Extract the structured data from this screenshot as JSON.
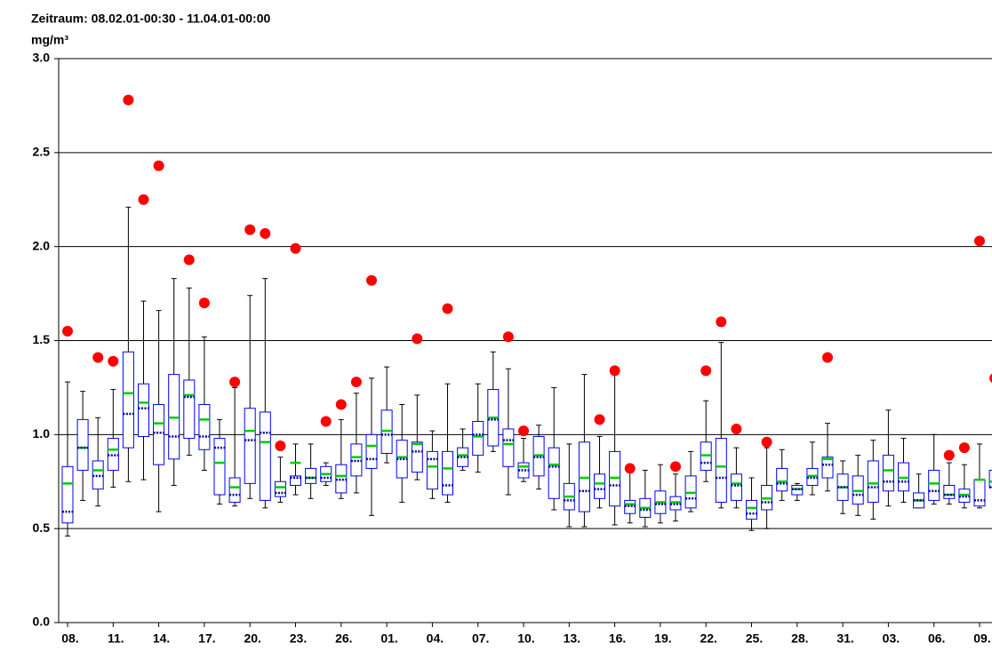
{
  "chart_data": {
    "type": "box",
    "title": "Zeitraum: 08.02.01-00:30 - 11.04.01-00:00",
    "y_label": "mg/m³",
    "categories": [
      "08.",
      null,
      null,
      "11.",
      null,
      null,
      "14.",
      null,
      null,
      "17.",
      null,
      null,
      "20.",
      null,
      null,
      "23.",
      null,
      null,
      "26.",
      null,
      null,
      "01.",
      null,
      null,
      "04.",
      null,
      null,
      "07.",
      null,
      null,
      "10.",
      null,
      null,
      "13.",
      null,
      null,
      "16.",
      null,
      null,
      "19.",
      null,
      null,
      "22.",
      null,
      null,
      "25.",
      null,
      null,
      "28.",
      null,
      null,
      "31.",
      null,
      null,
      "03.",
      null,
      null,
      "06.",
      null,
      null,
      "09.",
      null
    ],
    "whisker_low": [
      0.46,
      0.65,
      0.62,
      0.72,
      0.75,
      0.76,
      0.59,
      0.73,
      0.89,
      0.81,
      0.63,
      0.62,
      0.66,
      0.61,
      0.64,
      0.68,
      0.66,
      0.73,
      0.66,
      0.69,
      0.57,
      0.85,
      0.64,
      0.76,
      0.66,
      0.64,
      0.81,
      0.8,
      0.91,
      0.68,
      0.75,
      0.71,
      0.6,
      0.51,
      0.51,
      0.61,
      0.52,
      0.53,
      0.51,
      0.53,
      0.54,
      0.59,
      0.75,
      0.61,
      0.61,
      0.49,
      0.5,
      0.65,
      0.65,
      0.68,
      0.7,
      0.58,
      0.57,
      0.55,
      0.62,
      0.64,
      0.61,
      0.63,
      0.63,
      0.61,
      0.61,
      0.45
    ],
    "q1": [
      0.53,
      0.81,
      0.71,
      0.81,
      0.93,
      0.99,
      0.84,
      0.87,
      0.98,
      0.92,
      0.68,
      0.64,
      0.74,
      0.65,
      0.67,
      0.73,
      0.74,
      0.75,
      0.69,
      0.78,
      0.82,
      0.9,
      0.77,
      0.8,
      0.71,
      0.68,
      0.83,
      0.89,
      0.94,
      0.83,
      0.77,
      0.78,
      0.66,
      0.6,
      0.59,
      0.66,
      0.62,
      0.58,
      0.56,
      0.58,
      0.6,
      0.61,
      0.81,
      0.64,
      0.65,
      0.55,
      0.6,
      0.7,
      0.68,
      0.73,
      0.77,
      0.65,
      0.63,
      0.64,
      0.7,
      0.7,
      0.61,
      0.65,
      0.66,
      0.64,
      0.62,
      0.72
    ],
    "median": [
      0.74,
      0.93,
      0.81,
      0.92,
      1.22,
      1.17,
      1.06,
      1.09,
      1.21,
      1.08,
      0.85,
      0.72,
      1.02,
      0.96,
      0.72,
      0.85,
      0.77,
      0.79,
      0.78,
      0.88,
      0.94,
      1.02,
      0.88,
      0.95,
      0.83,
      0.82,
      0.89,
      0.99,
      1.09,
      0.95,
      0.83,
      0.89,
      0.84,
      0.67,
      0.77,
      0.74,
      0.77,
      0.63,
      0.61,
      0.64,
      0.64,
      0.69,
      0.89,
      0.83,
      0.74,
      0.61,
      0.66,
      0.75,
      0.71,
      0.78,
      0.87,
      0.72,
      0.7,
      0.74,
      0.81,
      0.77,
      0.65,
      0.74,
      0.68,
      0.68,
      0.76,
      0.75
    ],
    "mean": [
      0.59,
      0.93,
      0.78,
      0.89,
      1.11,
      1.14,
      1.01,
      0.99,
      1.2,
      0.99,
      0.93,
      0.68,
      0.97,
      1.01,
      0.69,
      0.77,
      0.77,
      0.77,
      0.76,
      0.86,
      0.87,
      1.0,
      0.87,
      0.91,
      0.87,
      0.73,
      0.88,
      1.0,
      1.08,
      0.97,
      0.81,
      0.88,
      0.83,
      0.65,
      0.7,
      0.71,
      0.73,
      0.62,
      0.6,
      0.63,
      0.63,
      0.66,
      0.85,
      0.77,
      0.73,
      0.58,
      0.64,
      0.74,
      0.71,
      0.77,
      0.84,
      0.72,
      0.68,
      0.72,
      0.75,
      0.75,
      0.65,
      0.7,
      0.68,
      0.67,
      0.65,
      0.72
    ],
    "q3": [
      0.83,
      1.08,
      0.86,
      0.98,
      1.44,
      1.27,
      1.16,
      1.32,
      1.29,
      1.16,
      0.98,
      0.77,
      1.14,
      1.12,
      0.75,
      0.78,
      0.82,
      0.83,
      0.84,
      0.95,
      1.0,
      1.13,
      0.97,
      0.96,
      0.91,
      0.91,
      0.93,
      1.07,
      1.24,
      1.03,
      0.85,
      0.99,
      0.93,
      0.74,
      0.96,
      0.79,
      0.91,
      0.65,
      0.66,
      0.7,
      0.67,
      0.78,
      0.96,
      0.98,
      0.79,
      0.65,
      0.73,
      0.82,
      0.73,
      0.82,
      0.88,
      0.79,
      0.78,
      0.86,
      0.89,
      0.85,
      0.69,
      0.81,
      0.73,
      0.71,
      0.76,
      0.81
    ],
    "whisker_high": [
      1.28,
      1.23,
      1.09,
      1.24,
      2.21,
      1.71,
      1.66,
      1.83,
      1.78,
      1.52,
      1.08,
      1.25,
      1.74,
      1.83,
      0.88,
      0.95,
      0.95,
      0.85,
      1.08,
      1.22,
      1.3,
      1.36,
      1.16,
      1.21,
      1.02,
      1.27,
      1.03,
      1.27,
      1.44,
      1.35,
      0.98,
      1.05,
      1.25,
      0.95,
      1.32,
      0.99,
      1.32,
      0.8,
      0.81,
      0.84,
      0.79,
      0.91,
      1.18,
      1.49,
      0.93,
      0.77,
      0.93,
      0.92,
      0.74,
      0.96,
      1.06,
      0.86,
      0.89,
      0.97,
      1.13,
      0.98,
      0.79,
      1.0,
      0.85,
      0.84,
      0.95,
      0.95
    ],
    "max": [
      1.55,
      null,
      1.41,
      1.39,
      2.78,
      2.25,
      2.43,
      null,
      1.93,
      1.7,
      null,
      1.28,
      2.09,
      2.07,
      0.94,
      1.99,
      null,
      1.07,
      1.16,
      1.28,
      1.82,
      null,
      null,
      1.51,
      null,
      1.67,
      null,
      null,
      null,
      1.52,
      1.02,
      null,
      null,
      null,
      null,
      1.08,
      1.34,
      0.82,
      null,
      null,
      0.83,
      null,
      1.34,
      1.6,
      1.03,
      null,
      0.96,
      null,
      null,
      null,
      1.41,
      null,
      null,
      null,
      null,
      null,
      null,
      null,
      0.89,
      0.93,
      2.03,
      1.3
    ],
    "box_color": "#0000ff",
    "median_color": "#00cc00",
    "mean_color": "#000099",
    "max_color": "#ff0000",
    "ylim": [
      0,
      3
    ],
    "yticks": [
      {
        "value": 0,
        "label": "0.0"
      },
      {
        "value": 0.5,
        "label": "0.5"
      },
      {
        "value": 1,
        "label": "1.0"
      },
      {
        "value": 1.5,
        "label": "1.5"
      },
      {
        "value": 2,
        "label": "2.0"
      },
      {
        "value": 2.5,
        "label": "2.5"
      },
      {
        "value": 3,
        "label": "3.0"
      }
    ],
    "grid": true
  }
}
